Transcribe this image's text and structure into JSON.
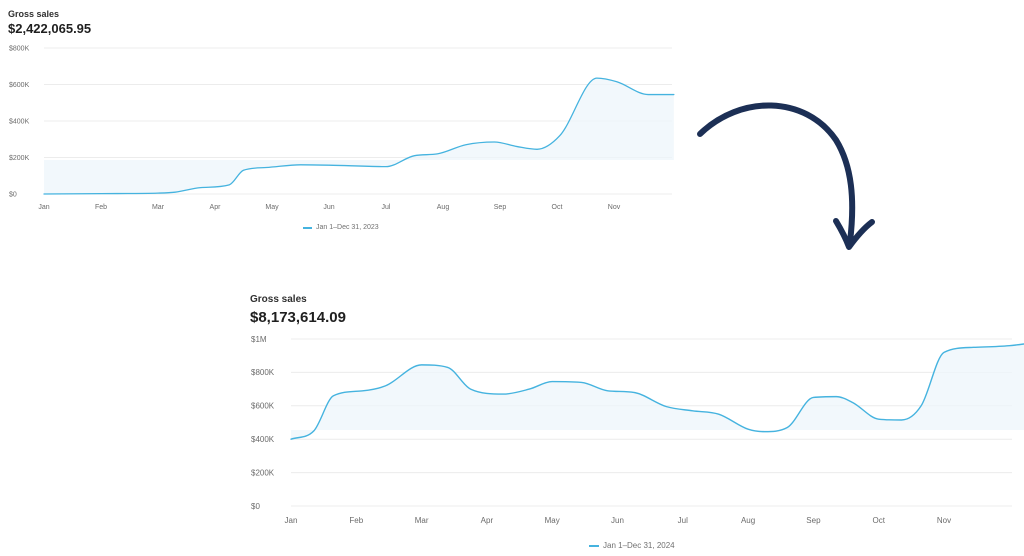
{
  "colors": {
    "line": "#45b3df",
    "fill": "#eef6fb",
    "grid": "#ececec",
    "arrow": "#1c2f55",
    "text": "#6b6b6b"
  },
  "chart_data": [
    {
      "type": "area",
      "title": "Gross sales",
      "total": "$2,422,065.95",
      "categories": [
        "Jan",
        "Feb",
        "Mar",
        "Apr",
        "May",
        "Jun",
        "Jul",
        "Aug",
        "Sep",
        "Oct",
        "Nov"
      ],
      "yticks": [
        "$0",
        "$200K",
        "$400K",
        "$600K",
        "$800K"
      ],
      "ylim": [
        0,
        800000
      ],
      "grid": true,
      "legend_position": "bottom-center",
      "series": [
        {
          "name": "Jan 1–Dec 31, 2023",
          "x": [
            0,
            1,
            2,
            2.3,
            2.75,
            3.25,
            3.5,
            3.9,
            4.5,
            5,
            6,
            6.5,
            6.9,
            7.4,
            7.9,
            8.3,
            8.65,
            9.05,
            9.7,
            10.05,
            10.6,
            11.05
          ],
          "values": [
            0,
            2000,
            5000,
            10000,
            35000,
            50000,
            130000,
            145000,
            160000,
            158000,
            150000,
            210000,
            220000,
            270000,
            285000,
            260000,
            245000,
            320000,
            635000,
            615000,
            545000,
            545000
          ]
        }
      ]
    },
    {
      "type": "area",
      "title": "Gross sales",
      "total": "$8,173,614.09",
      "categories": [
        "Jan",
        "Feb",
        "Mar",
        "Apr",
        "May",
        "Jun",
        "Jul",
        "Aug",
        "Sep",
        "Oct",
        "Nov"
      ],
      "yticks": [
        "$0",
        "$200K",
        "$400K",
        "$600K",
        "$800K",
        "$1M"
      ],
      "ylim": [
        0,
        1000000
      ],
      "grid": true,
      "legend_position": "bottom-center",
      "series": [
        {
          "name": "Jan 1–Dec 31, 2024",
          "x": [
            0,
            0.35,
            0.65,
            1.1,
            1.45,
            2,
            2.4,
            2.75,
            3.25,
            3.65,
            4,
            4.45,
            4.85,
            5.25,
            5.75,
            6.15,
            6.55,
            7.0,
            7.25,
            7.6,
            8,
            8.35,
            8.6,
            9.0,
            9.35,
            9.65,
            10.0,
            10.45,
            11.0,
            11.5
          ],
          "values": [
            400000,
            450000,
            660000,
            690000,
            720000,
            845000,
            830000,
            700000,
            670000,
            700000,
            745000,
            740000,
            690000,
            680000,
            595000,
            570000,
            550000,
            460000,
            445000,
            470000,
            650000,
            655000,
            620000,
            520000,
            515000,
            600000,
            920000,
            950000,
            960000,
            985000
          ]
        }
      ]
    }
  ]
}
